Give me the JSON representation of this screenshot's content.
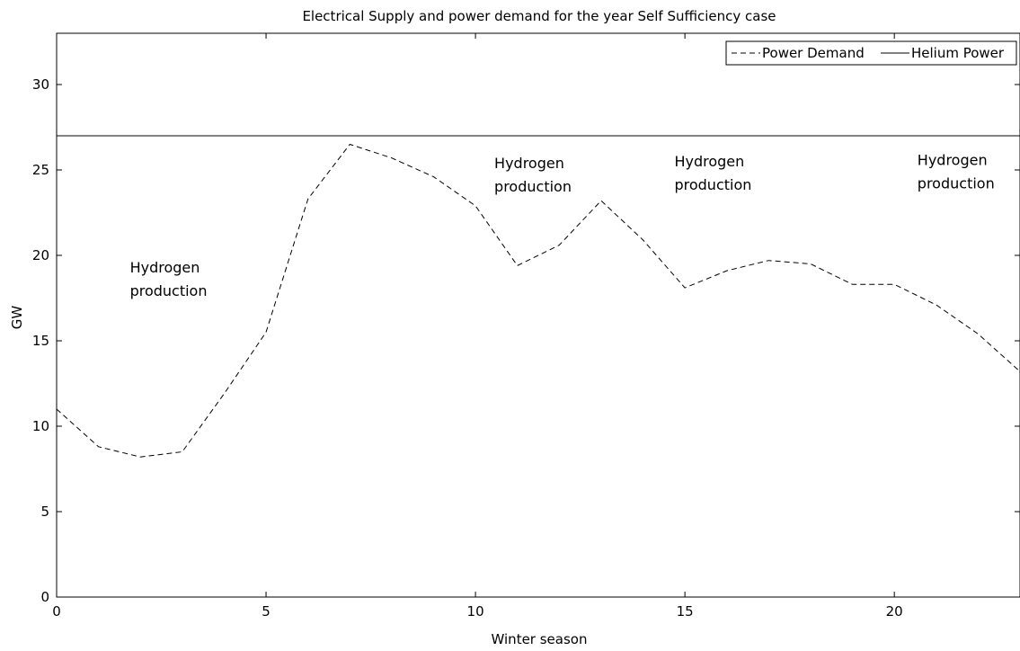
{
  "chart_data": {
    "type": "line",
    "title": "Electrical Supply and power demand for the year Self Sufficiency case",
    "xlabel": "Winter season",
    "ylabel": "GW",
    "xlim": [
      0,
      23
    ],
    "ylim": [
      0,
      33
    ],
    "x_ticks": [
      0,
      5,
      10,
      15,
      20
    ],
    "y_ticks": [
      0,
      5,
      10,
      15,
      20,
      25,
      30
    ],
    "grid": false,
    "legend_position": "top-right",
    "series": [
      {
        "name": "Power Demand",
        "style": "dashed",
        "color": "#000000",
        "x": [
          0,
          1,
          2,
          3,
          4,
          5,
          6,
          7,
          8,
          9,
          10,
          11,
          12,
          13,
          14,
          15,
          16,
          17,
          18,
          19,
          20,
          21,
          22,
          23
        ],
        "values": [
          11.0,
          8.8,
          8.2,
          8.5,
          11.9,
          15.5,
          23.3,
          26.5,
          25.7,
          24.6,
          22.9,
          19.4,
          20.6,
          23.2,
          20.9,
          18.1,
          19.1,
          19.7,
          19.5,
          18.3,
          18.3,
          17.1,
          15.4,
          13.2
        ]
      },
      {
        "name": "Helium Power",
        "style": "solid",
        "color": "#000000",
        "x": [
          0,
          23
        ],
        "values": [
          27.0,
          27.0
        ]
      }
    ],
    "annotations": [
      {
        "text": [
          "Hydrogen",
          "production"
        ],
        "x": 1.75,
        "y": 19.0
      },
      {
        "text": [
          "Hydrogen",
          "production"
        ],
        "x": 10.45,
        "y": 25.1
      },
      {
        "text": [
          "Hydrogen",
          "production"
        ],
        "x": 14.75,
        "y": 25.2
      },
      {
        "text": [
          "Hydrogen",
          "production"
        ],
        "x": 20.55,
        "y": 25.3
      }
    ]
  }
}
